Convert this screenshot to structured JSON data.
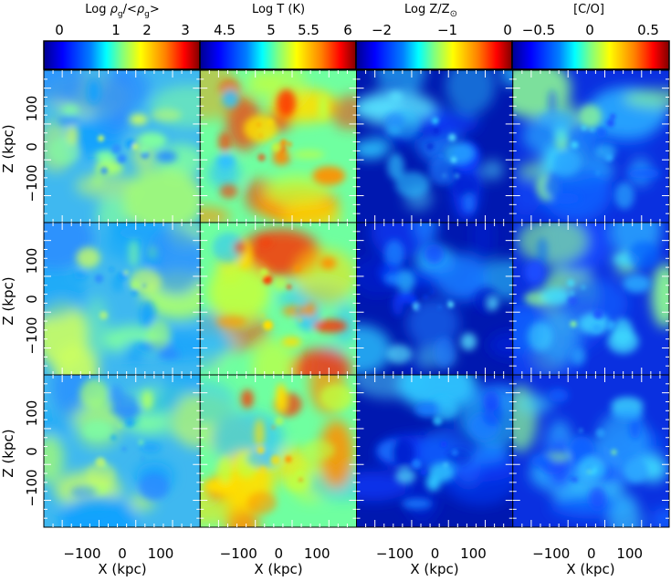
{
  "column_titles": [
    {
      "main": "Log ",
      "sym": "ρ",
      "sub": "g",
      "rest": "/<",
      "sym2": "ρ",
      "sub2": "g",
      "end": ">"
    },
    {
      "main": "Log T (K)"
    },
    {
      "main": "Log Z/Z",
      "sub": "⊙"
    },
    {
      "main": "[C/O]"
    }
  ],
  "colorbars": [
    {
      "ticks": [
        "0",
        "1",
        "2",
        "3"
      ],
      "range": [
        -0.7,
        3.3
      ]
    },
    {
      "ticks": [
        "4.5",
        "5",
        "5.5",
        "6"
      ],
      "range": [
        4.2,
        6.0
      ]
    },
    {
      "ticks": [
        "−2",
        "−1",
        "0"
      ],
      "range": [
        -2.4,
        0.0
      ]
    },
    {
      "ticks": [
        "−0.5",
        "0",
        "0.5"
      ],
      "range": [
        -0.75,
        0.7
      ]
    }
  ],
  "axes": {
    "ylabel": "Z (kpc)",
    "xlabel": "X (kpc)",
    "y_ticks": [
      "100",
      "0",
      "−100"
    ],
    "x_ticks": [
      "−100",
      "0",
      "100"
    ]
  },
  "colors": {
    "jet_stops": [
      "#00008f",
      "#0000ff",
      "#0080ff",
      "#00ffff",
      "#80ff80",
      "#ffff00",
      "#ff8000",
      "#ff0000",
      "#800000"
    ]
  }
}
